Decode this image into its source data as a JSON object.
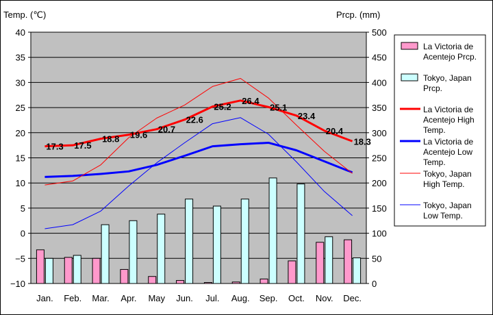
{
  "chart_data": {
    "type": "bar",
    "left_axis_title": "Temp. (℃)",
    "right_axis_title": "Prcp. (mm)",
    "left_ylim": [
      -10,
      40
    ],
    "left_ticks": [
      "40",
      "35",
      "30",
      "25",
      "20",
      "15",
      "10",
      "5",
      "0",
      "−5",
      "−10"
    ],
    "right_ylim": [
      0,
      500
    ],
    "right_ticks": [
      "500",
      "450",
      "400",
      "350",
      "300",
      "250",
      "200",
      "150",
      "100",
      "50",
      "0"
    ],
    "categories": [
      "Jan.",
      "Feb.",
      "Mar.",
      "Apr.",
      "May",
      "Jun.",
      "Jul.",
      "Aug.",
      "Sep.",
      "Oct.",
      "Nov.",
      "Dec."
    ],
    "grid": true,
    "plot_background": "#c0c0c0",
    "legend_position": "right",
    "bar_series": [
      {
        "name_lines": [
          "La Victoria de",
          "Acentejo Prcp."
        ],
        "color": "#ff99cc",
        "values": [
          67,
          52,
          50,
          28,
          14,
          6,
          2,
          3,
          9,
          45,
          82,
          87
        ]
      },
      {
        "name_lines": [
          "Tokyo, Japan",
          "Prcp."
        ],
        "color": "#ccffff",
        "values": [
          50,
          56,
          117,
          125,
          138,
          168,
          154,
          168,
          210,
          198,
          93,
          51
        ]
      }
    ],
    "line_series": [
      {
        "name_lines": [
          "La Victoria de",
          "Acentejo High",
          "Temp."
        ],
        "color": "#ff0000",
        "width": 3,
        "values": [
          17.3,
          17.5,
          18.8,
          19.6,
          20.7,
          22.6,
          25.2,
          26.4,
          25.1,
          23.4,
          20.4,
          18.3
        ],
        "labels": [
          "17.3",
          "17.5",
          "18.8",
          "19.6",
          "20.7",
          "22.6",
          "25.2",
          "26.4",
          "25.1",
          "23.4",
          "20.4",
          "18.3"
        ]
      },
      {
        "name_lines": [
          "La Victoria de",
          "Acentejo Low",
          "Temp."
        ],
        "color": "#0000ff",
        "width": 3,
        "values": [
          11.2,
          11.4,
          11.8,
          12.3,
          13.6,
          15.4,
          17.3,
          17.7,
          18.0,
          16.5,
          14.3,
          12.1
        ]
      },
      {
        "name_lines": [
          "Tokyo, Japan",
          "High Temp."
        ],
        "color": "#ff0000",
        "width": 1,
        "values": [
          9.6,
          10.4,
          13.6,
          19.0,
          22.9,
          25.5,
          29.2,
          30.8,
          26.9,
          21.5,
          16.3,
          11.9
        ]
      },
      {
        "name_lines": [
          "Tokyo, Japan",
          "Low Temp."
        ],
        "color": "#0000ff",
        "width": 1,
        "values": [
          0.9,
          1.7,
          4.4,
          9.4,
          14.0,
          18.0,
          21.8,
          23.0,
          19.7,
          14.2,
          8.3,
          3.5
        ]
      }
    ]
  }
}
